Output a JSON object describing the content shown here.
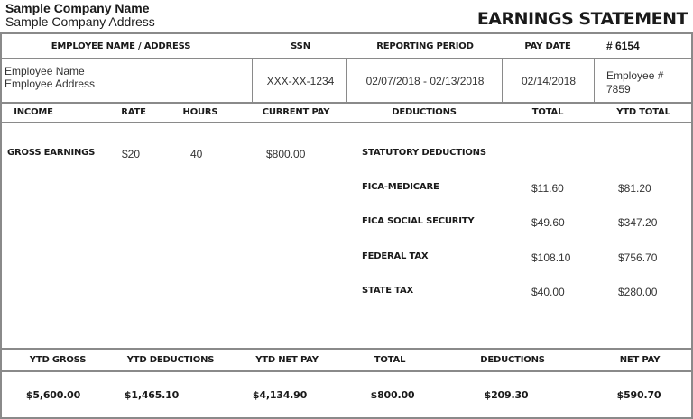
{
  "company": {
    "name": "Sample Company Name",
    "address": "Sample Company Address"
  },
  "title": "EARNINGS STATEMENT",
  "info_header": {
    "employee": "EMPLOYEE NAME / ADDRESS",
    "ssn": "SSN",
    "period": "REPORTING PERIOD",
    "pay_date": "PAY DATE",
    "number": "# 6154"
  },
  "info": {
    "employee_name": "Employee Name",
    "employee_address": "Employee Address",
    "ssn": "XXX-XX-1234",
    "period": "02/07/2018 - 02/13/2018",
    "pay_date": "02/14/2018",
    "employee_no_label": "Employee #",
    "employee_no": "7859"
  },
  "columns": {
    "income": "INCOME",
    "rate": "RATE",
    "hours": "HOURS",
    "current_pay": "CURRENT PAY",
    "deductions": "DEDUCTIONS",
    "total": "TOTAL",
    "ytd_total": "YTD TOTAL"
  },
  "income": {
    "label": "GROSS EARNINGS",
    "rate": "$20",
    "hours": "40",
    "current_pay": "$800.00"
  },
  "deductions": {
    "section": "STATUTORY DEDUCTIONS",
    "items": [
      {
        "label": "FICA-MEDICARE",
        "total": "$11.60",
        "ytd": "$81.20"
      },
      {
        "label": "FICA SOCIAL SECURITY",
        "total": "$49.60",
        "ytd": "$347.20"
      },
      {
        "label": "FEDERAL TAX",
        "total": "$108.10",
        "ytd": "$756.70"
      },
      {
        "label": "STATE TAX",
        "total": "$40.00",
        "ytd": "$280.00"
      }
    ]
  },
  "summary": {
    "headers": [
      "YTD GROSS",
      "YTD DEDUCTIONS",
      "YTD NET PAY",
      "TOTAL",
      "DEDUCTIONS",
      "NET PAY"
    ],
    "values": [
      "$5,600.00",
      "$1,465.10",
      "$4,134.90",
      "$800.00",
      "$209.30",
      "$590.70"
    ]
  }
}
